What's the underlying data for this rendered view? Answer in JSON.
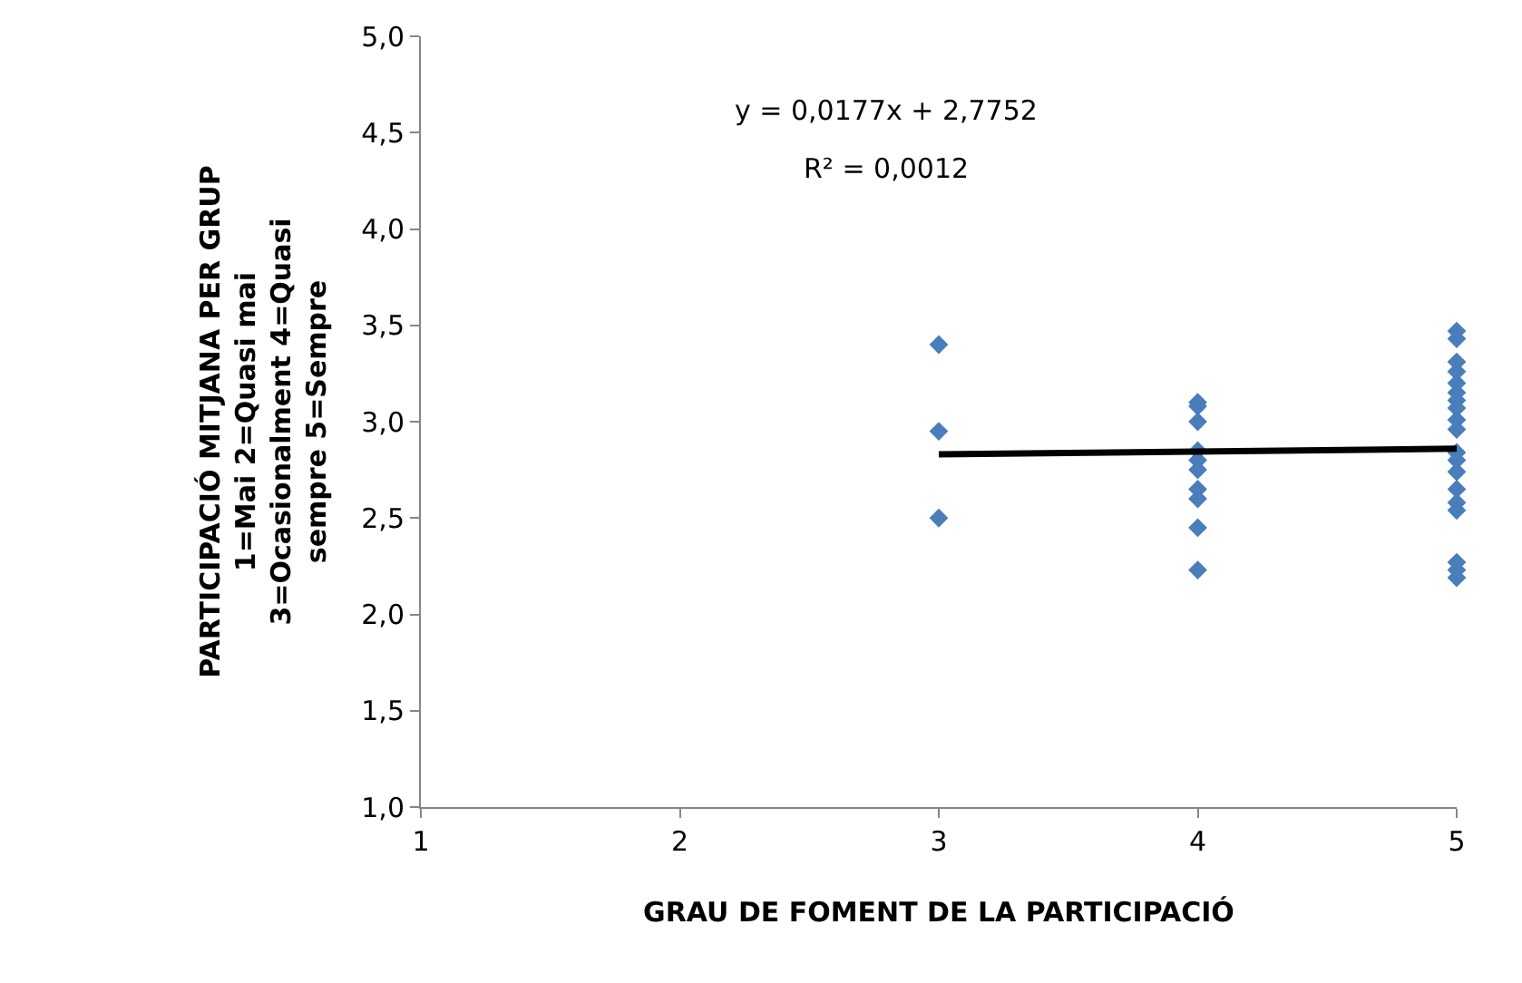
{
  "chart_data": {
    "type": "scatter",
    "xlabel": "GRAU DE FOMENT DE LA PARTICIPACIÓ",
    "ylabel": "PARTICIPACIÓ MITJANA PER GRUP 1=Mai 2=Quasi mai 3=Ocasionalment 4=Quasi sempre 5=Sempre",
    "annotations": [
      "y = 0,0177x + 2,7752",
      "R² = 0,0012"
    ],
    "xlim": [
      1,
      5
    ],
    "xticks": [
      1,
      2,
      3,
      4,
      5
    ],
    "ylim": [
      1,
      5
    ],
    "yticks": [
      {
        "value": 1,
        "label": "1,0"
      },
      {
        "value": 1.5,
        "label": "1,5"
      },
      {
        "value": 2,
        "label": "2,0"
      },
      {
        "value": 2.5,
        "label": "2,5"
      },
      {
        "value": 3,
        "label": "3,0"
      },
      {
        "value": 3.5,
        "label": "3,5"
      },
      {
        "value": 4,
        "label": "4,0"
      },
      {
        "value": 4.5,
        "label": "4,5"
      },
      {
        "value": 5,
        "label": "5,0"
      }
    ],
    "grid": false,
    "marker": "diamond",
    "series": [
      {
        "color": "#4a7ebb",
        "x": [
          3,
          3,
          3,
          4,
          4,
          4,
          4,
          4,
          4,
          4,
          4,
          4,
          4,
          5,
          5,
          5,
          5,
          5,
          5,
          5,
          5,
          5,
          5,
          5,
          5,
          5,
          5,
          5,
          5,
          5,
          5,
          5
        ],
        "values": [
          3.4,
          2.95,
          2.5,
          3.1,
          3.08,
          3.0,
          2.85,
          2.8,
          2.75,
          2.65,
          2.6,
          2.45,
          2.23,
          3.47,
          3.43,
          3.31,
          3.26,
          3.2,
          3.15,
          3.11,
          3.07,
          3.01,
          2.96,
          2.84,
          2.8,
          2.74,
          2.65,
          2.58,
          2.54,
          2.27,
          2.23,
          2.19
        ]
      },
      {
        "type": "line",
        "color": "#000000",
        "x": [
          3,
          5
        ],
        "values": [
          2.83,
          2.86
        ],
        "marker": "none",
        "line_style": "solid"
      }
    ]
  }
}
